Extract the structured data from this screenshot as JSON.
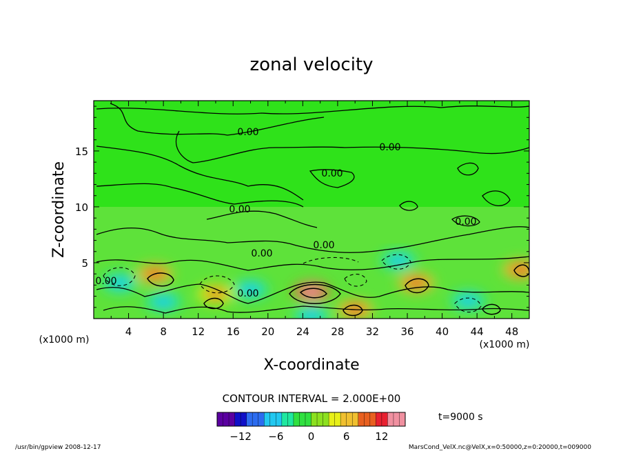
{
  "chart_data": {
    "type": "heatmap",
    "title": "zonal velocity",
    "xlabel": "X-coordinate",
    "ylabel": "Z-coordinate",
    "x_unit_label": "(x1000 m)",
    "x_unit_label_right": "(x1000 m)",
    "xlim": [
      0,
      50
    ],
    "ylim": [
      0,
      19.5
    ],
    "x_ticks": [
      4,
      8,
      12,
      16,
      20,
      24,
      28,
      32,
      36,
      40,
      44,
      48
    ],
    "y_ticks": [
      5,
      10,
      15
    ],
    "contour_interval_text": "CONTOUR INTERVAL = 2.000E+00",
    "contour_label": "0.00",
    "time_text": "t=9000 s",
    "colorbar": {
      "min": -16,
      "max": 16,
      "ticks": [
        -12,
        -6,
        0,
        6,
        12
      ],
      "tick_labels": [
        "−12",
        "−6",
        "0",
        "6",
        "12"
      ],
      "colors": [
        "#5a00a0",
        "#1010c8",
        "#2c6cf0",
        "#22c8f0",
        "#20e8a0",
        "#30e040",
        "#8ce020",
        "#e8f018",
        "#f0c030",
        "#e86020",
        "#e82030",
        "#f090a0"
      ]
    },
    "features": [
      {
        "x": 7,
        "z": 4.0,
        "value": 10
      },
      {
        "x": 14,
        "z": 2.2,
        "value": 8
      },
      {
        "x": 25,
        "z": 2.4,
        "value": 14
      },
      {
        "x": 30,
        "z": 0.8,
        "value": 9
      },
      {
        "x": 37,
        "z": 3.2,
        "value": 9
      },
      {
        "x": 49,
        "z": 4.4,
        "value": 9
      },
      {
        "x": 3,
        "z": 3.2,
        "value": -8
      },
      {
        "x": 8,
        "z": 1.5,
        "value": -8
      },
      {
        "x": 18,
        "z": 2.6,
        "value": -8
      },
      {
        "x": 35,
        "z": 5.2,
        "value": -6
      },
      {
        "x": 43,
        "z": 1.6,
        "value": -6
      },
      {
        "x": 25,
        "z": 0.3,
        "value": -8
      }
    ]
  },
  "footer": {
    "left": "/usr/bin/gpview   2008-12-17",
    "right": "MarsCond_VelX.nc@VelX,x=0:50000,z=0:20000,t=009000"
  }
}
